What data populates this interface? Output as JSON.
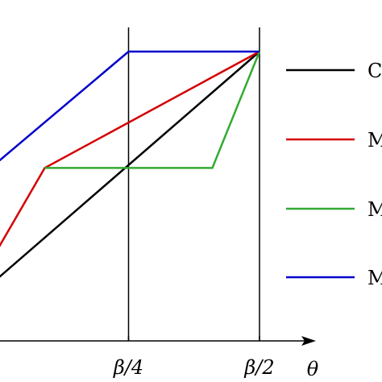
{
  "chart_data": {
    "type": "line",
    "title": "",
    "xlabel": "θ",
    "ylabel": "",
    "x_ticks": [
      {
        "value": 0.25,
        "label": "β/4"
      },
      {
        "value": 0.5,
        "label": "β/2"
      }
    ],
    "xlim": [
      0,
      0.55
    ],
    "ylim": [
      0,
      1
    ],
    "grid": "vertical lines at x ticks",
    "legend_placement": "right (cropped)",
    "series": [
      {
        "name": "C",
        "color": "#000000",
        "x": [
          0,
          0.5
        ],
        "y": [
          0.22,
          1.0
        ]
      },
      {
        "name": "M",
        "color": "#d40000",
        "x": [
          0,
          0.09,
          0.5
        ],
        "y": [
          0.32,
          0.6,
          1.0
        ]
      },
      {
        "name": "M",
        "color": "#33aa33",
        "x": [
          0.09,
          0.41,
          0.5
        ],
        "y": [
          0.6,
          0.6,
          1.0
        ]
      },
      {
        "name": "M",
        "color": "#0000cc",
        "x": [
          0,
          0.25,
          0.5
        ],
        "y": [
          0.62,
          1.0,
          1.0
        ]
      }
    ]
  }
}
